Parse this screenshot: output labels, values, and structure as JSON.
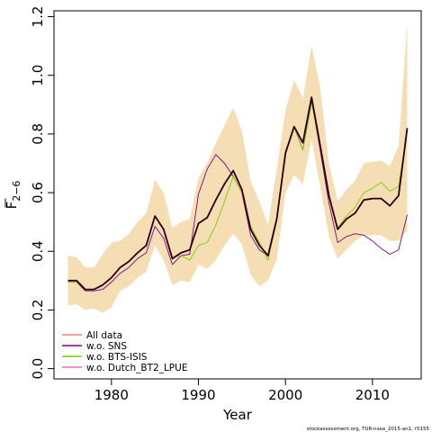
{
  "chart_data": {
    "type": "line",
    "xlabel": "Year",
    "ylabel_main": "F",
    "ylabel_sub": "2−6",
    "xlim": [
      1973.4,
      2015.6
    ],
    "ylim": [
      -0.035,
      1.22
    ],
    "xticks": [
      1980,
      1990,
      2000,
      2010
    ],
    "yticks": [
      0.0,
      0.2,
      0.4,
      0.6,
      0.8,
      1.0,
      1.2
    ],
    "ytick_labels": [
      "0.0",
      "0.2",
      "0.4",
      "0.6",
      "0.8",
      "1.0",
      "1.2"
    ],
    "grid": false,
    "legend_position": "bottom-left",
    "band": {
      "color": "#F5DEB3",
      "x": [
        1975,
        1976,
        1977,
        1978,
        1979,
        1980,
        1981,
        1982,
        1983,
        1984,
        1985,
        1986,
        1987,
        1988,
        1989,
        1990,
        1991,
        1992,
        1993,
        1994,
        1995,
        1996,
        1997,
        1998,
        1999,
        2000,
        2001,
        2002,
        2003,
        2004,
        2005,
        2006,
        2007,
        2008,
        2009,
        2010,
        2011,
        2012,
        2013,
        2014
      ],
      "upper": [
        0.385,
        0.38,
        0.345,
        0.345,
        0.39,
        0.43,
        0.435,
        0.46,
        0.5,
        0.53,
        0.645,
        0.6,
        0.48,
        0.5,
        0.51,
        0.65,
        0.7,
        0.77,
        0.83,
        0.89,
        0.81,
        0.64,
        0.57,
        0.49,
        0.68,
        0.88,
        0.985,
        0.92,
        1.1,
        0.96,
        0.7,
        0.57,
        0.61,
        0.64,
        0.7,
        0.705,
        0.71,
        0.69,
        0.76,
        1.18
      ],
      "lower": [
        0.215,
        0.22,
        0.2,
        0.205,
        0.19,
        0.21,
        0.265,
        0.28,
        0.31,
        0.33,
        0.42,
        0.37,
        0.285,
        0.3,
        0.295,
        0.355,
        0.34,
        0.37,
        0.42,
        0.46,
        0.425,
        0.32,
        0.28,
        0.3,
        0.37,
        0.6,
        0.66,
        0.63,
        0.78,
        0.62,
        0.45,
        0.375,
        0.405,
        0.435,
        0.455,
        0.455,
        0.455,
        0.435,
        0.435,
        0.47
      ]
    },
    "x": [
      1975,
      1976,
      1977,
      1978,
      1979,
      1980,
      1981,
      1982,
      1983,
      1984,
      1985,
      1986,
      1987,
      1988,
      1989,
      1990,
      1991,
      1992,
      1993,
      1994,
      1995,
      1996,
      1997,
      1998,
      1999,
      2000,
      2001,
      2002,
      2003,
      2004,
      2005,
      2006,
      2007,
      2008,
      2009,
      2010,
      2011,
      2012,
      2013,
      2014
    ],
    "series": [
      {
        "name": "All data",
        "color": "#F08080",
        "width": 1.2,
        "values": [
          0.3,
          0.3,
          0.27,
          0.27,
          0.285,
          0.31,
          0.345,
          0.365,
          0.395,
          0.42,
          0.52,
          0.475,
          0.375,
          0.395,
          0.405,
          0.495,
          0.515,
          0.575,
          0.63,
          0.675,
          0.61,
          0.475,
          0.42,
          0.385,
          0.51,
          0.735,
          0.825,
          0.77,
          0.925,
          0.76,
          0.59,
          0.475,
          0.51,
          0.53,
          0.575,
          0.58,
          0.58,
          0.555,
          0.59,
          0.82
        ]
      },
      {
        "name": "w.o. SNS",
        "color": "#800080",
        "width": 0.9,
        "values": [
          0.295,
          0.295,
          0.265,
          0.265,
          0.27,
          0.295,
          0.325,
          0.345,
          0.375,
          0.395,
          0.485,
          0.445,
          0.355,
          0.385,
          0.39,
          0.595,
          0.68,
          0.73,
          0.7,
          0.655,
          0.6,
          0.455,
          0.405,
          0.385,
          0.51,
          0.74,
          0.825,
          0.745,
          0.915,
          0.745,
          0.565,
          0.43,
          0.45,
          0.46,
          0.455,
          0.435,
          0.41,
          0.39,
          0.405,
          0.525
        ]
      },
      {
        "name": "w.o. BTS-ISIS",
        "color": "#7CCD00",
        "width": 0.9,
        "values": [
          0.295,
          0.295,
          0.27,
          0.27,
          0.285,
          0.31,
          0.345,
          0.365,
          0.395,
          0.42,
          0.52,
          0.475,
          0.38,
          0.385,
          0.37,
          0.42,
          0.43,
          0.49,
          0.57,
          0.655,
          0.6,
          0.485,
          0.43,
          0.37,
          0.505,
          0.74,
          0.825,
          0.745,
          0.905,
          0.76,
          0.59,
          0.48,
          0.52,
          0.55,
          0.6,
          0.615,
          0.635,
          0.605,
          0.62,
          0.81
        ]
      },
      {
        "name": "w.o. Dutch_BT2_LPUE",
        "color": "#FF69B4",
        "width": 1.2,
        "values": [
          0.3,
          0.3,
          0.27,
          0.27,
          0.285,
          0.31,
          0.345,
          0.365,
          0.395,
          0.42,
          0.52,
          0.475,
          0.375,
          0.395,
          0.405,
          0.495,
          0.515,
          0.575,
          0.63,
          0.675,
          0.61,
          0.475,
          0.42,
          0.385,
          0.51,
          0.735,
          0.825,
          0.77,
          0.925,
          0.76,
          0.59,
          0.475,
          0.51,
          0.53,
          0.575,
          0.58,
          0.58,
          0.555,
          0.59,
          0.82
        ]
      },
      {
        "name": "",
        "color": "#2A0010",
        "width": 1.8,
        "in_legend": false,
        "values": [
          0.3,
          0.3,
          0.27,
          0.27,
          0.285,
          0.31,
          0.345,
          0.365,
          0.395,
          0.42,
          0.52,
          0.475,
          0.375,
          0.395,
          0.405,
          0.495,
          0.515,
          0.575,
          0.63,
          0.675,
          0.61,
          0.475,
          0.42,
          0.385,
          0.51,
          0.735,
          0.825,
          0.77,
          0.925,
          0.76,
          0.59,
          0.475,
          0.51,
          0.53,
          0.575,
          0.58,
          0.58,
          0.555,
          0.59,
          0.82
        ]
      }
    ],
    "footnote": "stockassessment.org, TUR-nsea_2015-an1, r5155"
  }
}
